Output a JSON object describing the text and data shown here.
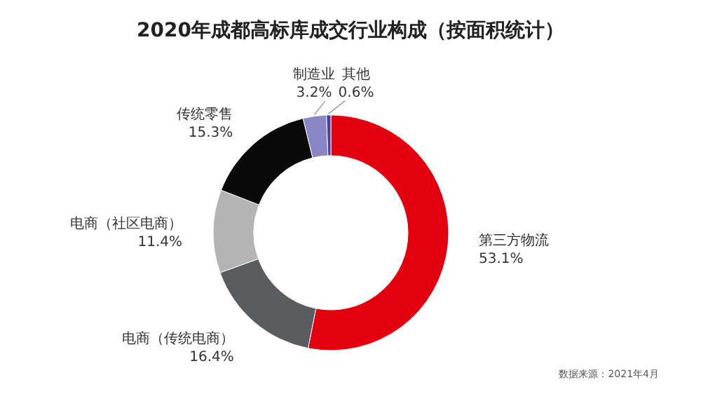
{
  "chart_data": {
    "type": "donut",
    "title": "2020年成都高标库成交行业构成（按面积统计）",
    "categories": [
      "第三方物流",
      "电商（传统电商）",
      "电商（社区电商）",
      "传统零售",
      "制造业",
      "其他"
    ],
    "values": [
      53.1,
      16.4,
      11.4,
      15.3,
      3.2,
      0.6
    ],
    "colors": [
      "#e2000f",
      "#5b5c60",
      "#b4b4b4",
      "#0a0a0a",
      "#8a86c6",
      "#4a3f9a"
    ],
    "value_labels": [
      "53.1%",
      "16.4%",
      "11.4%",
      "15.3%",
      "3.2%",
      "0.6%"
    ],
    "annotations": [
      "数据来源：2021年4月"
    ]
  }
}
